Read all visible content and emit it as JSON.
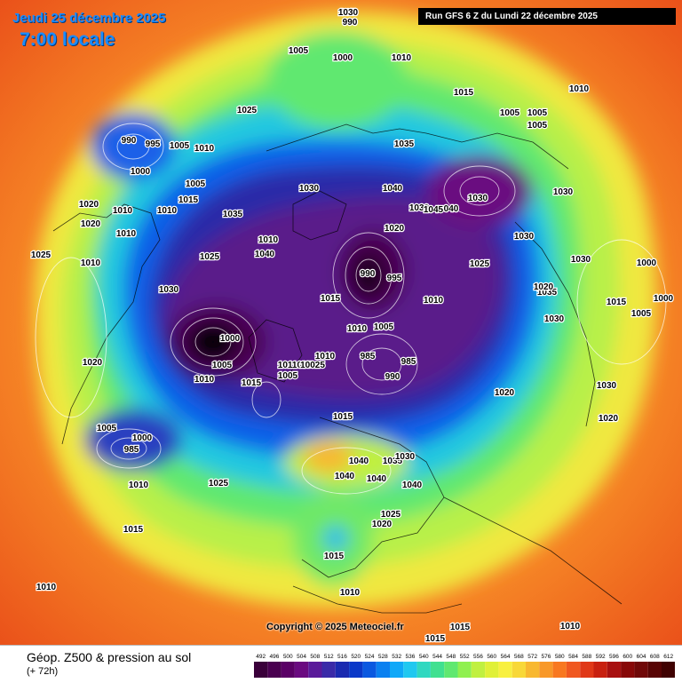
{
  "title": {
    "date": "Jeudi 25 décembre 2025",
    "time": "7:00 locale"
  },
  "run_info": "Run GFS 6 Z du Lundi 22 décembre 2025",
  "copyright": "Copyright © 2025 Meteociel.fr",
  "legend": {
    "title": "Géop. Z500 & pression au sol",
    "subtitle": "(+ 72h)",
    "levels": [
      "492",
      "496",
      "500",
      "504",
      "508",
      "512",
      "516",
      "520",
      "524",
      "528",
      "532",
      "536",
      "540",
      "544",
      "548",
      "552",
      "556",
      "560",
      "564",
      "568",
      "572",
      "576",
      "580",
      "584",
      "588",
      "592",
      "596",
      "600",
      "604",
      "608",
      "612"
    ],
    "colors": [
      "#3a003a",
      "#4a0050",
      "#5a0066",
      "#6a0a80",
      "#5a1a9a",
      "#3a2aa8",
      "#1a2ab0",
      "#0a38c8",
      "#0a58e0",
      "#0a80f0",
      "#10a8f8",
      "#20c8f0",
      "#30d8c0",
      "#40e090",
      "#60e870",
      "#90f050",
      "#c0f040",
      "#e0f038",
      "#f8f040",
      "#f8d838",
      "#f8b830",
      "#f89828",
      "#f87820",
      "#f05820",
      "#e03818",
      "#c82010",
      "#a81010",
      "#880808",
      "#700808",
      "#580404",
      "#400202"
    ]
  },
  "pressure_labels": [
    "995",
    "990",
    "1005",
    "1000",
    "1010",
    "1015",
    "1010",
    "1025",
    "990",
    "995",
    "1005",
    "1010",
    "1000",
    "1005",
    "1030",
    "1035",
    "1015",
    "1010",
    "1020",
    "1010",
    "1020",
    "1010",
    "1040",
    "1030",
    "1035",
    "1045",
    "040",
    "1030",
    "1005",
    "1005",
    "1005",
    "1030",
    "1020",
    "1025",
    "1010",
    "1030",
    "990",
    "995",
    "1015",
    "1040",
    "1000",
    "1030",
    "1025",
    "1010",
    "1030",
    "1035",
    "1015",
    "1020",
    "1000",
    "1005",
    "1005",
    "1010",
    "1030",
    "1000",
    "1005",
    "1015",
    "1011035",
    "10025",
    "1010",
    "1005",
    "985",
    "985",
    "990",
    "1015",
    "1020",
    "1030",
    "1020",
    "1010",
    "1000",
    "985",
    "1005",
    "1025",
    "1040",
    "1035",
    "1030",
    "1040",
    "1040",
    "1040",
    "1025",
    "1020",
    "1015",
    "1015",
    "1010",
    "1010",
    "1015",
    "1015",
    "1010",
    "1010",
    "1010",
    "1020",
    "1025",
    "1030"
  ]
}
